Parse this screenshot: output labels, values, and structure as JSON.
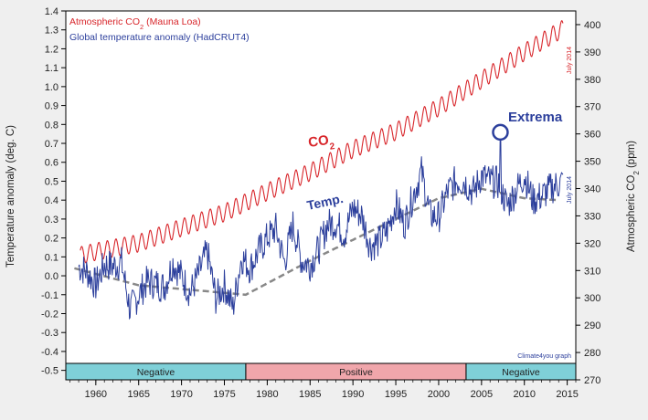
{
  "chart_data": {
    "type": "line",
    "x_axis": {
      "range": [
        1956.5,
        2016
      ],
      "ticks": [
        1960,
        1965,
        1970,
        1975,
        1980,
        1985,
        1990,
        1995,
        2000,
        2005,
        2010,
        2015
      ]
    },
    "y_left": {
      "label": "Temperature anomaly (deg. C)",
      "range": [
        -0.55,
        1.4
      ],
      "ticks": [
        "-0.5",
        "-0.4",
        "-0.3",
        "-0.2",
        "-0.1",
        "0.0",
        "0.1",
        "0.2",
        "0.3",
        "0.4",
        "0.5",
        "0.6",
        "0.7",
        "0.8",
        "0.9",
        "1.0",
        "1.1",
        "1.2",
        "1.3",
        "1.4"
      ]
    },
    "y_right": {
      "label_main": "Atmospheric CO",
      "label_sub": "2",
      "label_tail": " (ppm)",
      "range": [
        270,
        405
      ],
      "ticks": [
        270,
        280,
        290,
        300,
        310,
        320,
        330,
        340,
        350,
        360,
        370,
        380,
        390,
        400
      ]
    },
    "legend": {
      "co2_main": "Atmospheric CO",
      "co2_sub": "2",
      "co2_tail": " (Mauna Loa)",
      "temp": "Global temperature anomaly (HadCRUT4)"
    },
    "series": [
      {
        "name": "Atmospheric CO2 (Mauna Loa)",
        "axis": "right",
        "color": "#d8262b",
        "x": [
          1958.2,
          1960,
          1965,
          1970,
          1975,
          1980,
          1985,
          1990,
          1995,
          2000,
          2005,
          2010,
          2014.5
        ],
        "values": [
          315.5,
          316.9,
          320.0,
          325.7,
          331.1,
          338.8,
          346.0,
          354.4,
          360.9,
          369.7,
          379.8,
          389.9,
          398.5
        ],
        "seasonal_amplitude": 3.2
      },
      {
        "name": "Global temperature anomaly (HadCRUT4)",
        "axis": "left",
        "color": "#2c3f9c",
        "x": [
          1958,
          1959,
          1960,
          1961,
          1962,
          1963,
          1964,
          1965,
          1966,
          1967,
          1968,
          1969,
          1970,
          1971,
          1972,
          1973,
          1974,
          1975,
          1976,
          1977,
          1978,
          1979,
          1980,
          1981,
          1982,
          1983,
          1984,
          1985,
          1986,
          1987,
          1988,
          1989,
          1990,
          1991,
          1992,
          1993,
          1994,
          1995,
          1996,
          1997,
          1998,
          1999,
          2000,
          2001,
          2002,
          2003,
          2004,
          2005,
          2006,
          2007,
          2008,
          2009,
          2010,
          2011,
          2012,
          2013,
          2014.5
        ],
        "values": [
          0.05,
          0.02,
          -0.05,
          0.06,
          0.05,
          0.07,
          -0.18,
          -0.1,
          -0.03,
          -0.04,
          -0.06,
          0.07,
          0.0,
          -0.09,
          0.01,
          0.13,
          -0.12,
          -0.05,
          -0.17,
          0.1,
          0.04,
          0.13,
          0.2,
          0.25,
          0.07,
          0.27,
          0.08,
          0.06,
          0.14,
          0.27,
          0.28,
          0.22,
          0.36,
          0.32,
          0.16,
          0.18,
          0.24,
          0.38,
          0.27,
          0.42,
          0.55,
          0.32,
          0.31,
          0.44,
          0.5,
          0.5,
          0.44,
          0.53,
          0.5,
          0.49,
          0.37,
          0.45,
          0.53,
          0.4,
          0.42,
          0.46,
          0.5
        ],
        "noise": 0.09
      },
      {
        "name": "Temperature trend (smoothed)",
        "axis": "left",
        "color": "#888888",
        "dashed": true,
        "x": [
          1957.5,
          1965,
          1970,
          1977.5,
          1985,
          1990,
          1995,
          2000,
          2005,
          2010,
          2014
        ],
        "values": [
          0.04,
          -0.05,
          -0.07,
          -0.1,
          0.08,
          0.19,
          0.3,
          0.41,
          0.46,
          0.41,
          0.4
        ]
      }
    ],
    "annotations": {
      "co2_label_main": "CO",
      "co2_label_sub": "2",
      "temp_label": "Temp.",
      "extrema_label": "Extrema",
      "extrema_point": {
        "x": 2007.2,
        "y": 0.72
      },
      "july_2014_top": "July 2014",
      "july_2014_mid": "July 2014",
      "credit": "Climate4you graph"
    },
    "phases": [
      {
        "label": "Negative",
        "start": 1956.5,
        "end": 1977.5,
        "color": "#7fd0d8"
      },
      {
        "label": "Positive",
        "start": 1977.5,
        "end": 2003.2,
        "color": "#f0a6ab"
      },
      {
        "label": "Negative",
        "start": 2003.2,
        "end": 2016,
        "color": "#7fd0d8"
      }
    ],
    "grid": false
  }
}
